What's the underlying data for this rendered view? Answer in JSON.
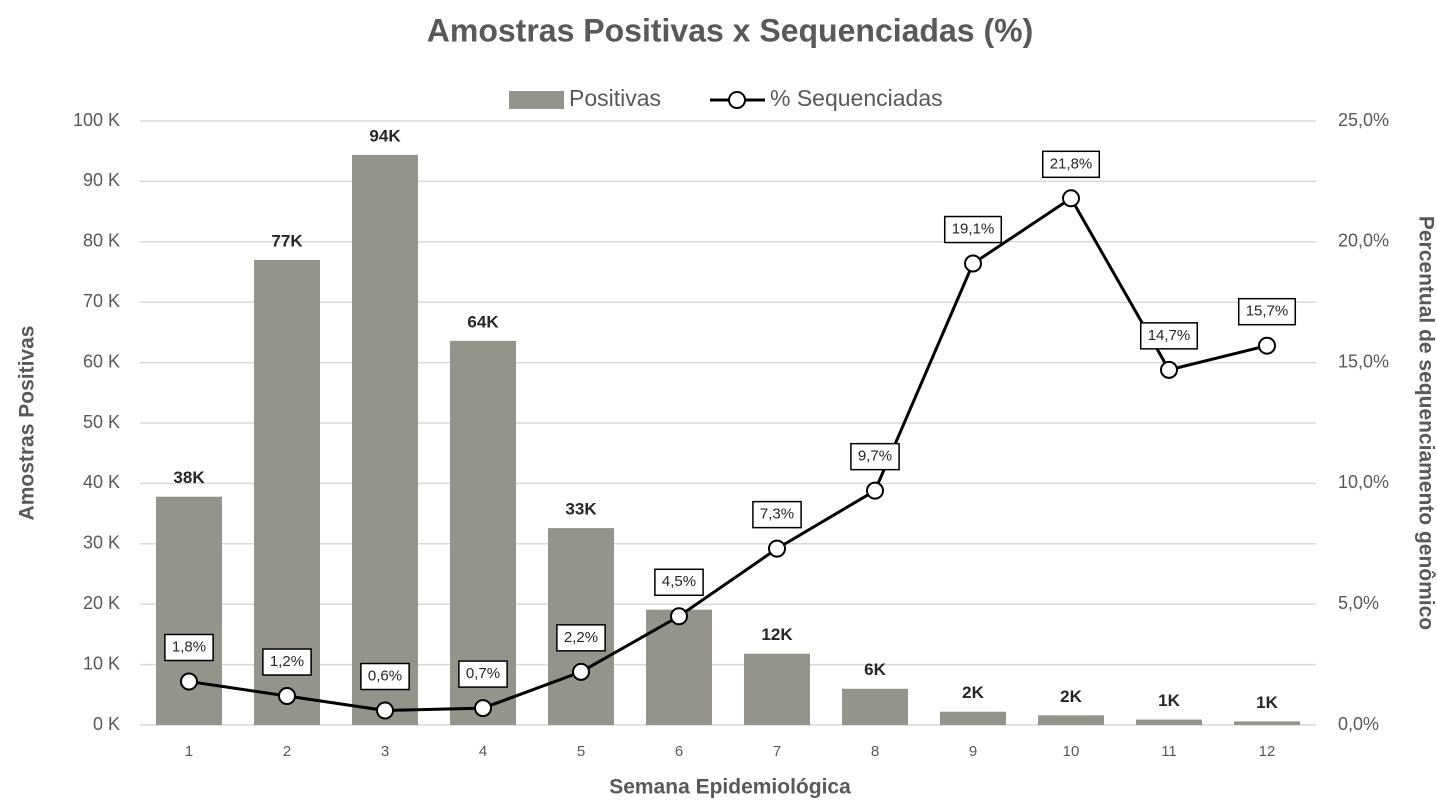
{
  "chart_data": {
    "type": "bar",
    "title": "Amostras Positivas x Sequenciadas (%)",
    "x_label": "Semana Epidemiológica",
    "y_label": "Amostras Positivas",
    "y2_label": "Percentual de sequenciamento genômico",
    "categories": [
      "1",
      "2",
      "3",
      "4",
      "5",
      "6",
      "7",
      "8",
      "9",
      "10",
      "11",
      "12"
    ],
    "series": [
      {
        "name": "Positivas",
        "type": "bar",
        "color": "#95948a",
        "values": [
          37800,
          77000,
          94400,
          63600,
          32600,
          19100,
          11800,
          6000,
          2200,
          1600,
          900,
          600
        ],
        "value_labels": [
          "38K",
          "77K",
          "94K",
          "64K",
          "33K",
          null,
          "12K",
          "6K",
          "2K",
          "2K",
          "1K",
          "1K"
        ]
      },
      {
        "name": "% Sequenciadas",
        "type": "line",
        "axis": "y2",
        "color": "#000000",
        "values": [
          1.8,
          1.2,
          0.6,
          0.7,
          2.2,
          4.5,
          7.3,
          9.7,
          19.1,
          21.8,
          14.7,
          15.7
        ],
        "value_labels": [
          "1,8%",
          "1,2%",
          "0,6%",
          "0,7%",
          "2,2%",
          "4,5%",
          "7,3%",
          "9,7%",
          "19,1%",
          "21,8%",
          "14,7%",
          "15,7%"
        ]
      }
    ],
    "ylim": [
      0,
      100000
    ],
    "yticks": [
      {
        "value": 0,
        "label": "0 K"
      },
      {
        "value": 10000,
        "label": "10 K"
      },
      {
        "value": 20000,
        "label": "20 K"
      },
      {
        "value": 30000,
        "label": "30 K"
      },
      {
        "value": 40000,
        "label": "40 K"
      },
      {
        "value": 50000,
        "label": "50 K"
      },
      {
        "value": 60000,
        "label": "60 K"
      },
      {
        "value": 70000,
        "label": "70 K"
      },
      {
        "value": 80000,
        "label": "80 K"
      },
      {
        "value": 90000,
        "label": "90 K"
      },
      {
        "value": 100000,
        "label": "100 K"
      }
    ],
    "y2lim": [
      0,
      25
    ],
    "y2ticks": [
      {
        "value": 0,
        "label": "0,0%"
      },
      {
        "value": 5,
        "label": "5,0%"
      },
      {
        "value": 10,
        "label": "10,0%"
      },
      {
        "value": 15,
        "label": "15,0%"
      },
      {
        "value": 20,
        "label": "20,0%"
      },
      {
        "value": 25,
        "label": "25,0%"
      }
    ],
    "grid": true,
    "legend": "top"
  }
}
